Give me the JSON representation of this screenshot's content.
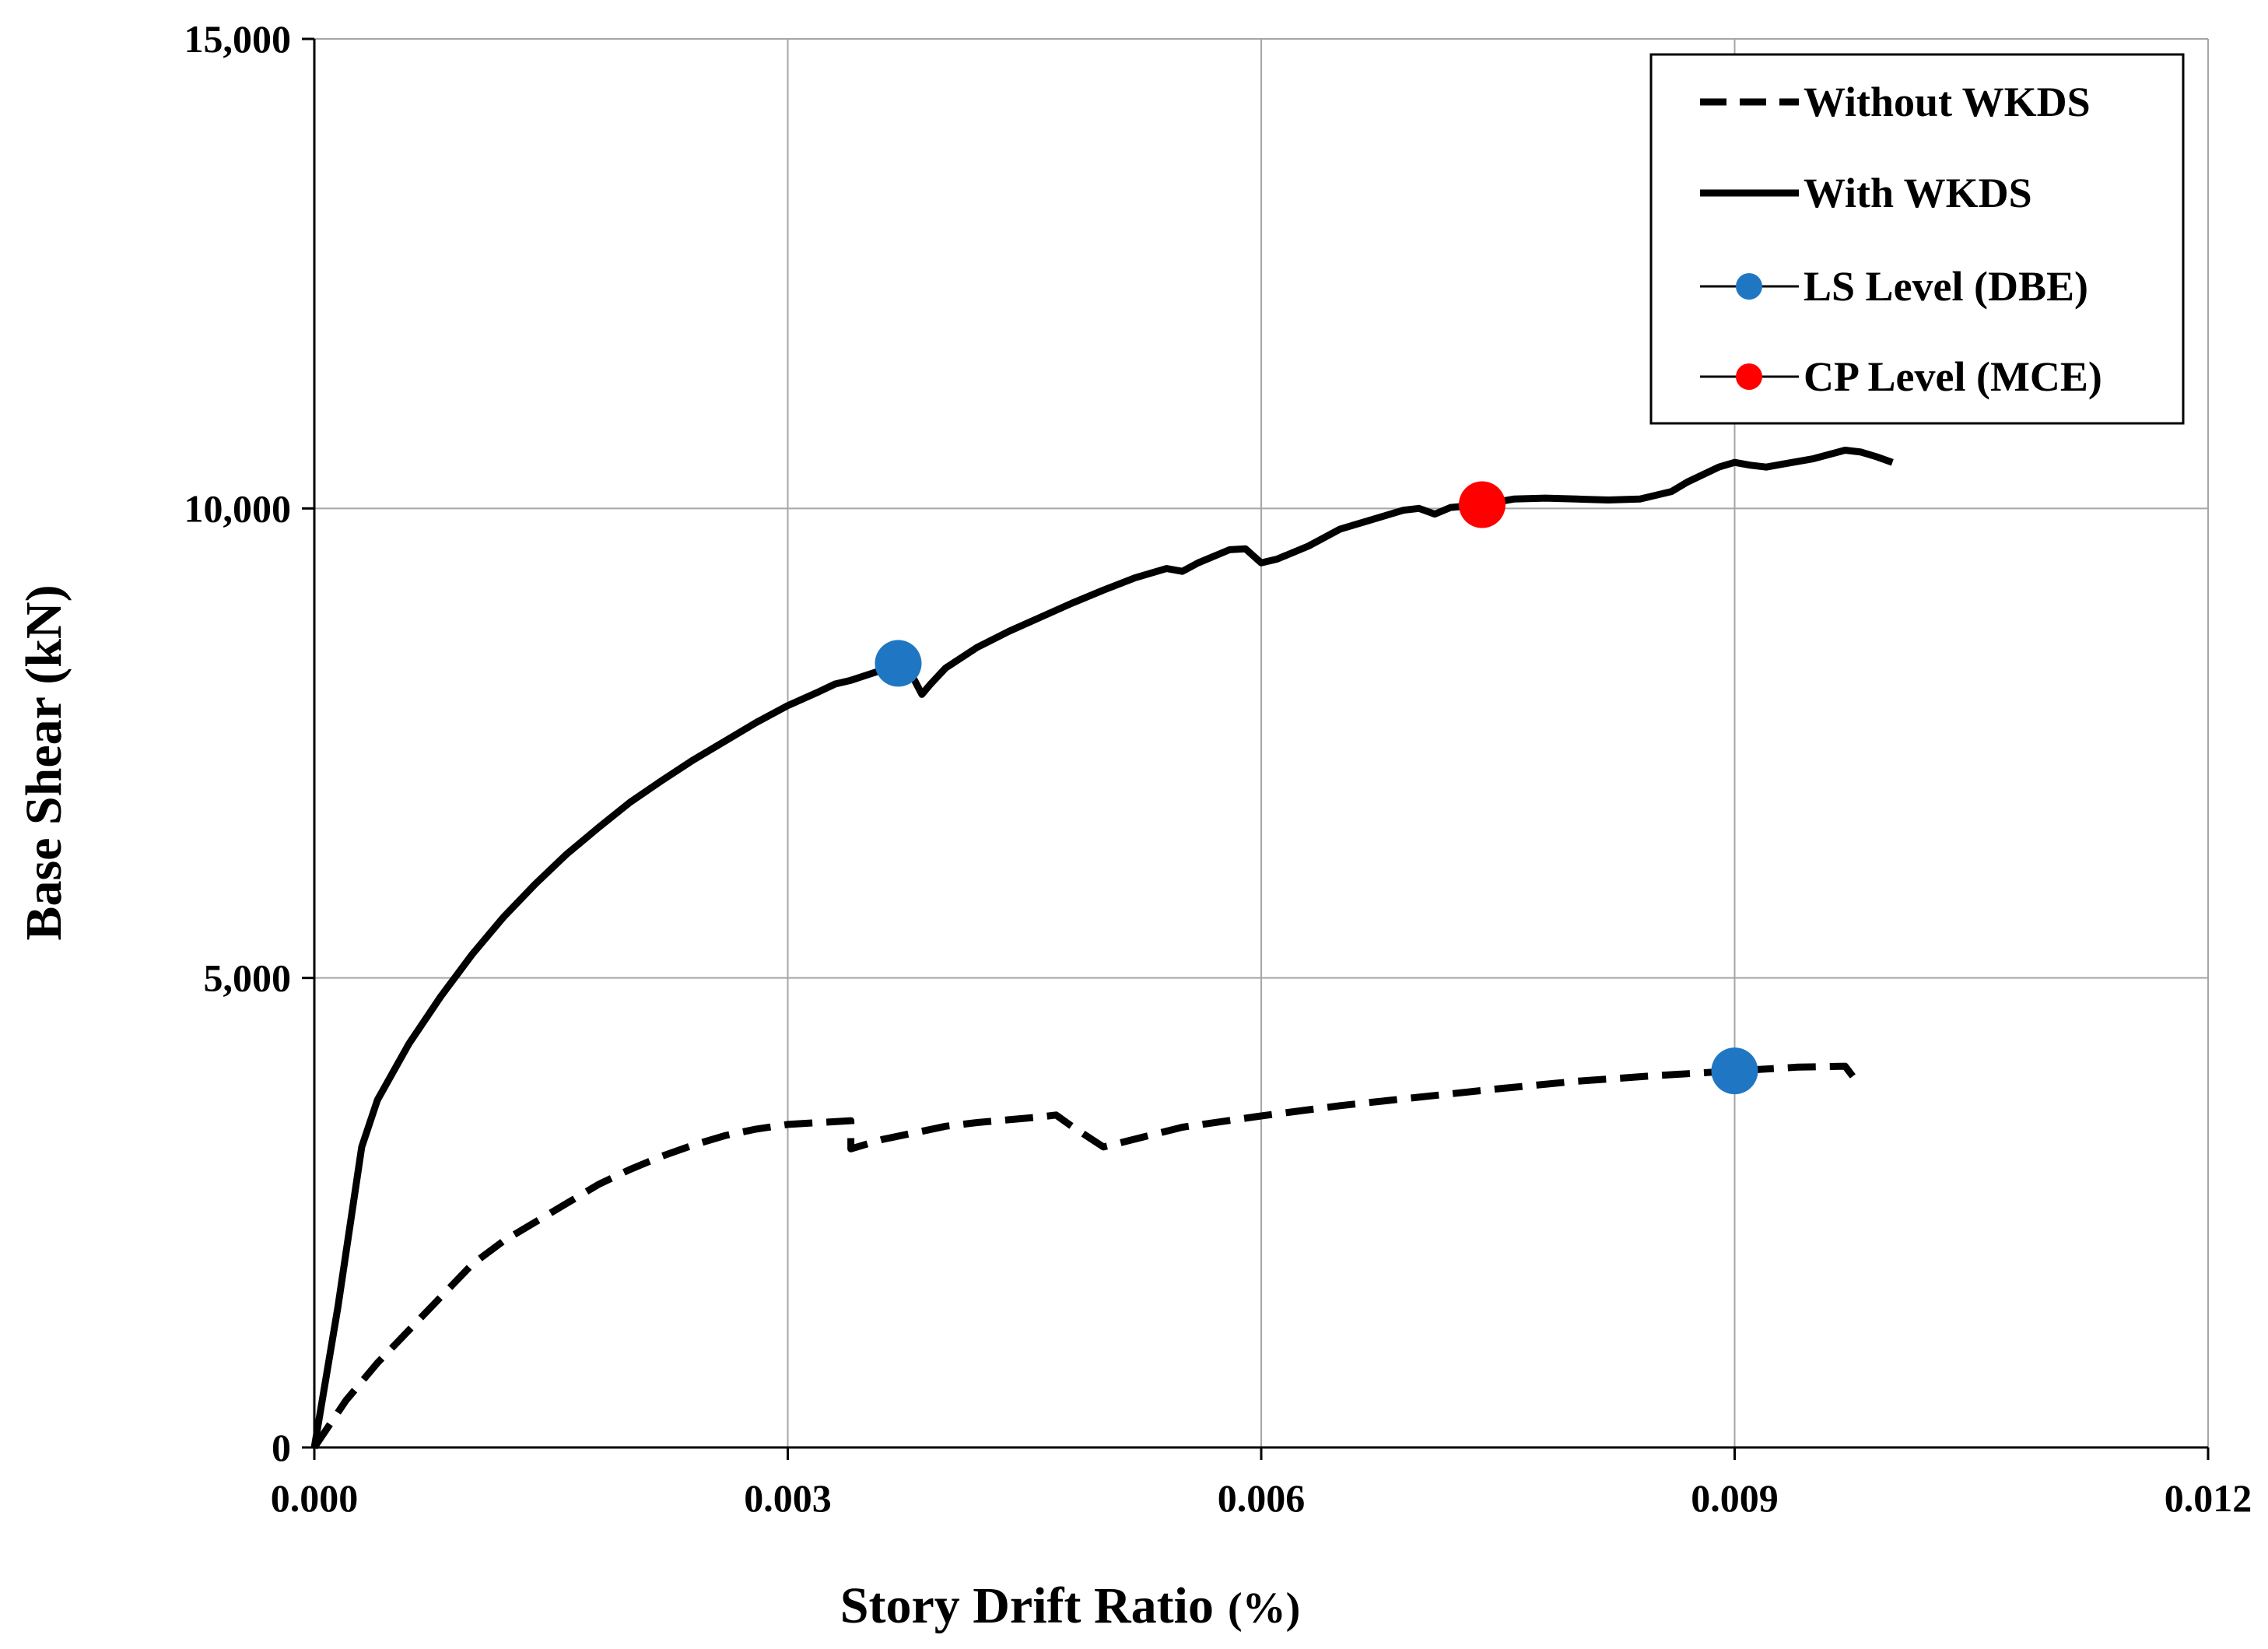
{
  "chart_data": {
    "type": "line",
    "title": "",
    "xlabel": "Story Drift Ratio",
    "xlabel_unit": "(%)",
    "ylabel": "Base Shear (kN)",
    "xlim": [
      0,
      0.012
    ],
    "ylim": [
      0,
      15000
    ],
    "xticks": [
      0,
      0.003,
      0.006,
      0.009,
      0.012
    ],
    "xtick_labels": [
      "0.000",
      "0.003",
      "0.006",
      "0.009",
      "0.012"
    ],
    "yticks": [
      0,
      5000,
      10000,
      15000
    ],
    "ytick_labels": [
      "0",
      "5,000",
      "10,000",
      "15,000"
    ],
    "grid": true,
    "legend_position": "top-right",
    "series": [
      {
        "name": "Without WKDS",
        "style": "dashed",
        "color": "#000000",
        "x": [
          0,
          0.0002,
          0.0004,
          0.0006,
          0.0008,
          0.001,
          0.0012,
          0.0014,
          0.0016,
          0.0018,
          0.002,
          0.0022,
          0.0024,
          0.0026,
          0.0028,
          0.003,
          0.0032,
          0.0034,
          0.0034,
          0.0036,
          0.0038,
          0.004,
          0.0042,
          0.0044,
          0.0046,
          0.0047,
          0.0048,
          0.005,
          0.0055,
          0.006,
          0.0065,
          0.007,
          0.0075,
          0.008,
          0.0085,
          0.009,
          0.0094,
          0.0097,
          0.00975
        ],
        "y": [
          0,
          500,
          900,
          1250,
          1600,
          1950,
          2200,
          2400,
          2600,
          2800,
          2960,
          3100,
          3220,
          3320,
          3390,
          3440,
          3460,
          3480,
          3180,
          3280,
          3350,
          3420,
          3460,
          3490,
          3520,
          3540,
          3420,
          3200,
          3410,
          3530,
          3640,
          3730,
          3820,
          3900,
          3960,
          4010,
          4050,
          4060,
          3950
        ]
      },
      {
        "name": "With WKDS",
        "style": "solid",
        "color": "#000000",
        "x": [
          0,
          0.00015,
          0.0003,
          0.0004,
          0.0006,
          0.0008,
          0.001,
          0.0012,
          0.0014,
          0.0016,
          0.0018,
          0.002,
          0.0022,
          0.0024,
          0.0026,
          0.0028,
          0.003,
          0.0032,
          0.0033,
          0.0034,
          0.0036,
          0.0037,
          0.0038,
          0.00385,
          0.0039,
          0.004,
          0.0042,
          0.0044,
          0.0046,
          0.0048,
          0.005,
          0.0052,
          0.0054,
          0.0055,
          0.0056,
          0.0058,
          0.0059,
          0.006,
          0.0061,
          0.0063,
          0.0065,
          0.0067,
          0.0069,
          0.007,
          0.0071,
          0.0072,
          0.0074,
          0.0076,
          0.0078,
          0.008,
          0.0082,
          0.0084,
          0.0086,
          0.0087,
          0.0089,
          0.009,
          0.0091,
          0.0092,
          0.0093,
          0.0095,
          0.0097,
          0.0098,
          0.0099,
          0.01
        ],
        "y": [
          0,
          1500,
          3200,
          3700,
          4300,
          4800,
          5250,
          5650,
          6000,
          6320,
          6600,
          6870,
          7100,
          7320,
          7520,
          7720,
          7900,
          8050,
          8130,
          8170,
          8280,
          8340,
          8180,
          8020,
          8120,
          8300,
          8520,
          8690,
          8840,
          8990,
          9130,
          9260,
          9360,
          9330,
          9420,
          9560,
          9570,
          9420,
          9460,
          9600,
          9780,
          9880,
          9980,
          10000,
          9940,
          10010,
          10040,
          10100,
          10110,
          10100,
          10090,
          10100,
          10180,
          10280,
          10440,
          10490,
          10460,
          10440,
          10470,
          10530,
          10620,
          10600,
          10550,
          10490
        ]
      },
      {
        "name": "LS Level (DBE)",
        "style": "marker",
        "color": "#1f77c4",
        "x": [
          0.0037,
          0.009
        ],
        "y": [
          8350,
          4010
        ]
      },
      {
        "name": "CP Level (MCE)",
        "style": "marker",
        "color": "#ff0000",
        "x": [
          0.0074
        ],
        "y": [
          10040
        ]
      }
    ]
  }
}
